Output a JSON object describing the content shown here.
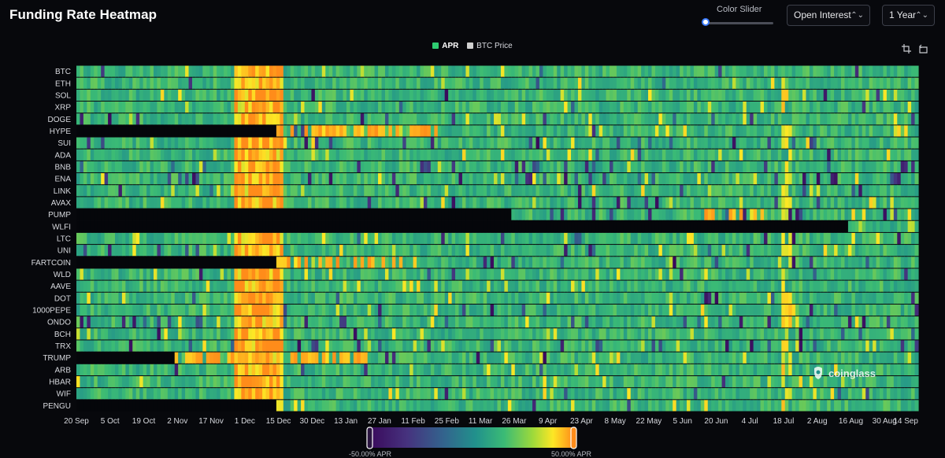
{
  "header": {
    "title": "Funding Rate Heatmap",
    "slider_label": "Color Slider",
    "metric_select": "Open Interest",
    "range_select": "1 Year"
  },
  "icons": {
    "chevron": "chevron-updown-icon",
    "crop": "crop-icon",
    "reset": "reset-icon",
    "logo": "coinglass-logo-icon"
  },
  "watermark": {
    "text": "coinglass"
  },
  "colors": {
    "background": "#07080c",
    "apr_legend": "#2ecc71",
    "btc_price_legend": "#d0d0d0",
    "scale": [
      "#3a0a5c",
      "#46327e",
      "#33638d",
      "#21918c",
      "#3bbb75",
      "#9dd93b",
      "#fde725",
      "#ff8c1a"
    ]
  },
  "chart_data": {
    "type": "heatmap",
    "title": "Funding Rate Heatmap",
    "legend": [
      {
        "label": "APR",
        "color": "#2ecc71"
      },
      {
        "label": "BTC Price",
        "color": "#d0d0d0"
      }
    ],
    "legend_placement": "top-center",
    "y_categories": [
      "BTC",
      "ETH",
      "SOL",
      "XRP",
      "DOGE",
      "HYPE",
      "SUI",
      "ADA",
      "BNB",
      "ENA",
      "LINK",
      "AVAX",
      "PUMP",
      "WLFI",
      "LTC",
      "UNI",
      "FARTCOIN",
      "WLD",
      "AAVE",
      "DOT",
      "1000PEPE",
      "ONDO",
      "BCH",
      "TRX",
      "TRUMP",
      "ARB",
      "HBAR",
      "WIF",
      "PENGU"
    ],
    "x_tick_labels": [
      "20 Sep",
      "5 Oct",
      "19 Oct",
      "2 Nov",
      "17 Nov",
      "1 Dec",
      "15 Dec",
      "30 Dec",
      "13 Jan",
      "27 Jan",
      "11 Feb",
      "25 Feb",
      "11 Mar",
      "26 Mar",
      "9 Apr",
      "23 Apr",
      "8 May",
      "22 May",
      "5 Jun",
      "20 Jun",
      "4 Jul",
      "18 Jul",
      "2 Aug",
      "16 Aug",
      "30 Aug",
      "14 Sep"
    ],
    "x_range": [
      "20 Sep",
      "14 Sep"
    ],
    "data_start_tick": {
      "HYPE": "15 Dec",
      "PUMP": "26 Mar",
      "WLFI": "16 Aug",
      "FARTCOIN": "15 Dec",
      "TRUMP": "2 Nov",
      "PENGU": "15 Dec"
    },
    "color_scale": {
      "min_label": "-50.00% APR",
      "max_label": "50.00% APR",
      "min": -50,
      "max": 50
    }
  }
}
